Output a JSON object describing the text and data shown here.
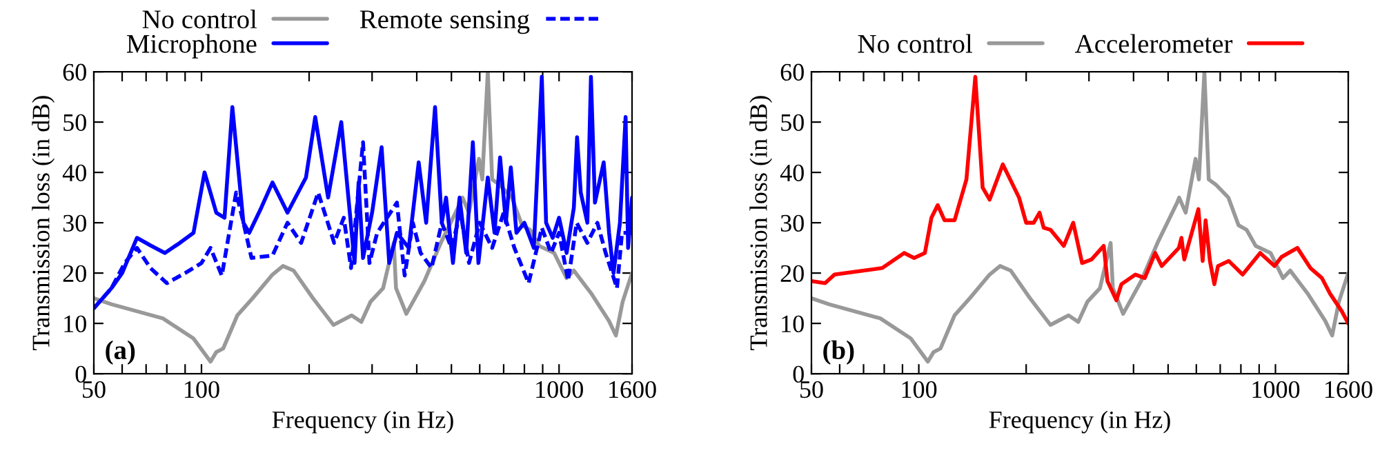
{
  "chart_data": [
    {
      "type": "line",
      "xlabel": "Frequency (in Hz)",
      "ylabel": "Transmission loss (in dB)",
      "log": "x",
      "xlim": [
        50,
        1600
      ],
      "ylim": [
        0,
        60
      ],
      "xticks": [
        50,
        {
          "value": 60,
          "label": null
        },
        {
          "value": 70,
          "label": null
        },
        {
          "value": 80,
          "label": null
        },
        {
          "value": 90,
          "label": null
        },
        100,
        {
          "value": 200,
          "label": null
        },
        {
          "value": 300,
          "label": null
        },
        {
          "value": 400,
          "label": null
        },
        {
          "value": 500,
          "label": null
        },
        {
          "value": 600,
          "label": null
        },
        {
          "value": 700,
          "label": null
        },
        {
          "value": 800,
          "label": null
        },
        {
          "value": 900,
          "label": null
        },
        1000,
        1600
      ],
      "yticks": [
        0,
        10,
        20,
        30,
        40,
        50,
        60
      ],
      "grid": false,
      "legend": "top",
      "annotations": [
        "(a)"
      ],
      "series": [
        {
          "name": "No control",
          "color": "#999999",
          "line_style": "solid",
          "x": [
            50,
            56,
            78,
            95,
            106,
            110,
            115,
            126,
            139,
            158,
            169,
            181,
            205,
            234,
            263,
            280,
            297,
            322,
            345,
            350,
            374,
            420,
            467,
            530,
            537,
            560,
            597,
            610,
            632,
            650,
            680,
            738,
            788,
            830,
            880,
            969,
            1050,
            1100,
            1229,
            1379,
            1442,
            1506,
            1600
          ],
          "values": [
            15,
            13.8,
            11,
            7,
            2.4,
            4.3,
            5,
            11.6,
            15,
            19.7,
            21.4,
            20.5,
            15,
            9.7,
            11.6,
            10.3,
            14.3,
            17,
            26,
            17,
            11.9,
            18.4,
            26,
            34,
            35,
            32,
            42.7,
            38.6,
            60,
            38.6,
            37.6,
            35,
            29.5,
            28.6,
            25.4,
            24,
            19,
            20.5,
            16,
            10.5,
            7.6,
            14.3,
            20
          ]
        },
        {
          "name": "Microphone",
          "color": "#0000ff",
          "line_style": "solid",
          "x": [
            50,
            56,
            60,
            66,
            72,
            79,
            87,
            95,
            102,
            110,
            116,
            122,
            131,
            136,
            147,
            158,
            174,
            196,
            208,
            226,
            246,
            268,
            275,
            283,
            300,
            319,
            335,
            352,
            380,
            405,
            425,
            450,
            470,
            483,
            505,
            527,
            550,
            574,
            595,
            632,
            660,
            684,
            710,
            733,
            760,
            800,
            850,
            895,
            920,
            960,
            1000,
            1050,
            1100,
            1123,
            1150,
            1200,
            1228,
            1260,
            1333,
            1380,
            1420,
            1480,
            1535,
            1560,
            1600
          ],
          "values": [
            13,
            17,
            20,
            27,
            25.5,
            24,
            26,
            28,
            40,
            32,
            31,
            53,
            30,
            28,
            33,
            38,
            32,
            39,
            51,
            35,
            50,
            22,
            38,
            23,
            32,
            45,
            22,
            28,
            25,
            42,
            30,
            53,
            30,
            35,
            22,
            35,
            24,
            46,
            22,
            39,
            28,
            43,
            30,
            41,
            28,
            30,
            25,
            59,
            30,
            27,
            31,
            24,
            33,
            47,
            36,
            30,
            59,
            34,
            42,
            28,
            20,
            30,
            51,
            25,
            35
          ]
        },
        {
          "name": "Remote sensing",
          "color": "#0000ff",
          "line_style": "dashed",
          "x": [
            50,
            56,
            61,
            66,
            72,
            80,
            90,
            100,
            106,
            114,
            125,
            131,
            138,
            158,
            174,
            190,
            212,
            235,
            250,
            262,
            283,
            295,
            310,
            352,
            370,
            390,
            410,
            440,
            470,
            500,
            530,
            560,
            600,
            650,
            700,
            750,
            822,
            895,
            950,
            1000,
            1060,
            1120,
            1200,
            1280,
            1350,
            1452,
            1500,
            1600
          ],
          "values": [
            13,
            17,
            22,
            25,
            21,
            18,
            20,
            22,
            25,
            19.5,
            36,
            30,
            23,
            23.5,
            30,
            26,
            36,
            26,
            31,
            21,
            46,
            22,
            28,
            34,
            19.5,
            30,
            24,
            21,
            30,
            25,
            32,
            22,
            30,
            25,
            32,
            25,
            18,
            29,
            24,
            28,
            18.5,
            30,
            26,
            30,
            24,
            17,
            28,
            28
          ]
        }
      ]
    },
    {
      "type": "line",
      "xlabel": "Frequency (in Hz)",
      "ylabel": "Transmission loss (in dB)",
      "log": "x",
      "xlim": [
        50,
        1600
      ],
      "ylim": [
        0,
        60
      ],
      "xticks": [
        50,
        {
          "value": 60,
          "label": null
        },
        {
          "value": 70,
          "label": null
        },
        {
          "value": 80,
          "label": null
        },
        {
          "value": 90,
          "label": null
        },
        100,
        {
          "value": 200,
          "label": null
        },
        {
          "value": 300,
          "label": null
        },
        {
          "value": 400,
          "label": null
        },
        {
          "value": 500,
          "label": null
        },
        {
          "value": 600,
          "label": null
        },
        {
          "value": 700,
          "label": null
        },
        {
          "value": 800,
          "label": null
        },
        {
          "value": 900,
          "label": null
        },
        1000,
        1600
      ],
      "yticks": [
        0,
        10,
        20,
        30,
        40,
        50,
        60
      ],
      "grid": false,
      "legend": "top",
      "annotations": [
        "(b)"
      ],
      "series": [
        {
          "name": "No control",
          "color": "#999999",
          "line_style": "solid",
          "x": [
            50,
            56,
            78,
            95,
            106,
            110,
            115,
            126,
            139,
            158,
            169,
            181,
            205,
            234,
            263,
            280,
            297,
            322,
            345,
            350,
            374,
            420,
            467,
            530,
            537,
            560,
            597,
            610,
            632,
            650,
            680,
            738,
            788,
            830,
            880,
            969,
            1050,
            1100,
            1229,
            1379,
            1442,
            1506,
            1600
          ],
          "values": [
            15,
            13.8,
            11,
            7,
            2.4,
            4.3,
            5,
            11.6,
            15,
            19.7,
            21.4,
            20.5,
            15,
            9.7,
            11.6,
            10.3,
            14.3,
            17,
            26,
            17,
            11.9,
            18.4,
            26,
            34,
            35,
            32,
            42.7,
            38.6,
            60,
            38.6,
            37.6,
            35,
            29.5,
            28.6,
            25.4,
            24,
            19,
            20.5,
            16,
            10.5,
            7.6,
            14.3,
            20
          ]
        },
        {
          "name": "Accelerometer",
          "color": "#ff0000",
          "line_style": "solid",
          "x": [
            50,
            54.6,
            58,
            79,
            91,
            97,
            104,
            108.5,
            113,
            118,
            126,
            136,
            144,
            151,
            158,
            172,
            191,
            200,
            210,
            218,
            224,
            234,
            255,
            271,
            287,
            305,
            330,
            338,
            358,
            370,
            405,
            430,
            460,
            480,
            536,
            545,
            555,
            608,
            625,
            637,
            655,
            674,
            690,
            740,
            809,
            906,
            994,
            1040,
            1152,
            1253,
            1350,
            1420,
            1535,
            1600
          ],
          "values": [
            18.4,
            18,
            19.7,
            21,
            24,
            23,
            24,
            31,
            33.5,
            30.5,
            30.5,
            38.6,
            59,
            37,
            34.6,
            41.6,
            35,
            30,
            30,
            32,
            29,
            28.6,
            25.4,
            30,
            22,
            22.7,
            25.4,
            18.4,
            14.6,
            17.8,
            19.7,
            19,
            24,
            21.4,
            25,
            27,
            22.7,
            32.7,
            22.4,
            30.5,
            22.4,
            17.8,
            21.4,
            22.4,
            19.7,
            24,
            21.4,
            23.2,
            25,
            21,
            19,
            16,
            12.4,
            10
          ]
        }
      ]
    }
  ]
}
